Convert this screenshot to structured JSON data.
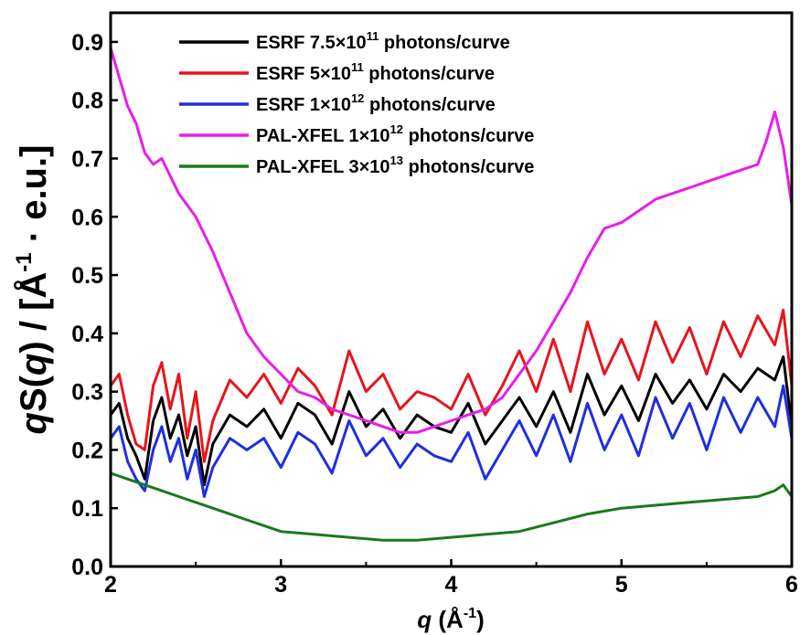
{
  "chart_data": {
    "type": "line",
    "title": "",
    "xlabel": {
      "italic": "q",
      "rest_before_sup": " (Å",
      "sup": "-1",
      "rest_after_sup": ")"
    },
    "ylabel": {
      "italic1": "q",
      "part1": "S(",
      "italic2": "q",
      "part2": ") / [Å",
      "sup": "-1",
      "part3": " · e.u.]"
    },
    "xlim": [
      2,
      6
    ],
    "ylim": [
      0,
      0.95
    ],
    "xticks": [
      "2",
      "3",
      "4",
      "5",
      "6"
    ],
    "yticks": [
      "0.0",
      "0.1",
      "0.2",
      "0.3",
      "0.4",
      "0.5",
      "0.6",
      "0.7",
      "0.8",
      "0.9"
    ],
    "grid": false,
    "legend_position": "top",
    "series": [
      {
        "label": {
          "prefix": "ESRF 7.5×10",
          "sup": "11",
          "suffix": " photons/curve"
        },
        "color": "#000000",
        "x": [
          2.0,
          2.05,
          2.1,
          2.15,
          2.2,
          2.25,
          2.3,
          2.35,
          2.4,
          2.45,
          2.5,
          2.55,
          2.6,
          2.7,
          2.8,
          2.9,
          3.0,
          3.1,
          3.2,
          3.3,
          3.4,
          3.5,
          3.6,
          3.7,
          3.8,
          3.9,
          4.0,
          4.1,
          4.2,
          4.3,
          4.4,
          4.5,
          4.6,
          4.7,
          4.8,
          4.9,
          5.0,
          5.1,
          5.2,
          5.3,
          5.4,
          5.5,
          5.6,
          5.7,
          5.8,
          5.9,
          5.95,
          6.0
        ],
        "y": [
          0.26,
          0.28,
          0.22,
          0.19,
          0.15,
          0.25,
          0.29,
          0.22,
          0.26,
          0.19,
          0.24,
          0.14,
          0.21,
          0.26,
          0.24,
          0.27,
          0.22,
          0.28,
          0.26,
          0.21,
          0.3,
          0.24,
          0.27,
          0.22,
          0.26,
          0.24,
          0.23,
          0.28,
          0.21,
          0.25,
          0.29,
          0.24,
          0.3,
          0.23,
          0.33,
          0.26,
          0.31,
          0.25,
          0.33,
          0.28,
          0.32,
          0.27,
          0.33,
          0.3,
          0.34,
          0.32,
          0.36,
          0.24
        ]
      },
      {
        "label": {
          "prefix": "ESRF 5×10",
          "sup": "11",
          "suffix": " photons/curve"
        },
        "color": "#e8141c",
        "x": [
          2.0,
          2.05,
          2.1,
          2.15,
          2.2,
          2.25,
          2.3,
          2.35,
          2.4,
          2.45,
          2.5,
          2.55,
          2.6,
          2.7,
          2.8,
          2.9,
          3.0,
          3.1,
          3.2,
          3.3,
          3.4,
          3.5,
          3.6,
          3.7,
          3.8,
          3.9,
          4.0,
          4.1,
          4.2,
          4.3,
          4.4,
          4.5,
          4.6,
          4.7,
          4.8,
          4.9,
          5.0,
          5.1,
          5.2,
          5.3,
          5.4,
          5.5,
          5.6,
          5.7,
          5.8,
          5.9,
          5.95,
          6.0
        ],
        "y": [
          0.31,
          0.33,
          0.26,
          0.21,
          0.2,
          0.31,
          0.35,
          0.27,
          0.33,
          0.22,
          0.3,
          0.18,
          0.25,
          0.32,
          0.29,
          0.33,
          0.28,
          0.34,
          0.31,
          0.26,
          0.37,
          0.3,
          0.33,
          0.27,
          0.3,
          0.29,
          0.27,
          0.33,
          0.26,
          0.31,
          0.37,
          0.3,
          0.39,
          0.3,
          0.42,
          0.33,
          0.39,
          0.32,
          0.42,
          0.35,
          0.41,
          0.33,
          0.42,
          0.36,
          0.43,
          0.38,
          0.44,
          0.31
        ]
      },
      {
        "label": {
          "prefix": "ESRF 1×10",
          "sup": "12",
          "suffix": " photons/curve"
        },
        "color": "#1f2fe0",
        "x": [
          2.0,
          2.05,
          2.1,
          2.15,
          2.2,
          2.25,
          2.3,
          2.35,
          2.4,
          2.45,
          2.5,
          2.55,
          2.6,
          2.7,
          2.8,
          2.9,
          3.0,
          3.1,
          3.2,
          3.3,
          3.4,
          3.5,
          3.6,
          3.7,
          3.8,
          3.9,
          4.0,
          4.1,
          4.2,
          4.3,
          4.4,
          4.5,
          4.6,
          4.7,
          4.8,
          4.9,
          5.0,
          5.1,
          5.2,
          5.3,
          5.4,
          5.5,
          5.6,
          5.7,
          5.8,
          5.9,
          5.95,
          6.0
        ],
        "y": [
          0.22,
          0.24,
          0.18,
          0.15,
          0.13,
          0.2,
          0.24,
          0.18,
          0.22,
          0.15,
          0.2,
          0.12,
          0.17,
          0.22,
          0.2,
          0.22,
          0.17,
          0.23,
          0.21,
          0.16,
          0.25,
          0.19,
          0.22,
          0.17,
          0.21,
          0.19,
          0.18,
          0.23,
          0.15,
          0.2,
          0.25,
          0.19,
          0.26,
          0.18,
          0.28,
          0.2,
          0.26,
          0.19,
          0.29,
          0.22,
          0.28,
          0.2,
          0.29,
          0.23,
          0.29,
          0.24,
          0.31,
          0.22
        ]
      },
      {
        "label": {
          "prefix": "PAL-XFEL 1×10",
          "sup": "12",
          "suffix": " photons/curve"
        },
        "color": "#e81ee8",
        "x": [
          2.0,
          2.05,
          2.1,
          2.15,
          2.2,
          2.25,
          2.3,
          2.4,
          2.5,
          2.6,
          2.7,
          2.8,
          2.9,
          3.0,
          3.1,
          3.2,
          3.3,
          3.4,
          3.5,
          3.6,
          3.7,
          3.8,
          3.9,
          4.0,
          4.1,
          4.2,
          4.25,
          4.3,
          4.4,
          4.5,
          4.6,
          4.7,
          4.8,
          4.9,
          5.0,
          5.1,
          5.2,
          5.3,
          5.4,
          5.5,
          5.6,
          5.7,
          5.8,
          5.85,
          5.9,
          5.95,
          6.0
        ],
        "y": [
          0.89,
          0.84,
          0.79,
          0.76,
          0.71,
          0.69,
          0.7,
          0.64,
          0.6,
          0.54,
          0.47,
          0.4,
          0.36,
          0.33,
          0.3,
          0.29,
          0.27,
          0.26,
          0.25,
          0.24,
          0.23,
          0.23,
          0.24,
          0.25,
          0.26,
          0.27,
          0.28,
          0.29,
          0.33,
          0.37,
          0.42,
          0.47,
          0.53,
          0.58,
          0.59,
          0.61,
          0.63,
          0.64,
          0.65,
          0.66,
          0.67,
          0.68,
          0.69,
          0.73,
          0.78,
          0.72,
          0.62
        ]
      },
      {
        "label": {
          "prefix": "PAL-XFEL 3×10",
          "sup": "13",
          "suffix": " photons/curve"
        },
        "color": "#1a7a1a",
        "x": [
          2.0,
          2.1,
          2.2,
          2.3,
          2.4,
          2.5,
          2.6,
          2.7,
          2.8,
          2.9,
          3.0,
          3.2,
          3.4,
          3.6,
          3.8,
          4.0,
          4.2,
          4.4,
          4.6,
          4.8,
          5.0,
          5.2,
          5.4,
          5.6,
          5.8,
          5.9,
          5.95,
          6.0
        ],
        "y": [
          0.16,
          0.15,
          0.14,
          0.13,
          0.12,
          0.11,
          0.1,
          0.09,
          0.08,
          0.07,
          0.06,
          0.055,
          0.05,
          0.045,
          0.045,
          0.05,
          0.055,
          0.06,
          0.075,
          0.09,
          0.1,
          0.105,
          0.11,
          0.115,
          0.12,
          0.13,
          0.14,
          0.12
        ]
      }
    ]
  }
}
